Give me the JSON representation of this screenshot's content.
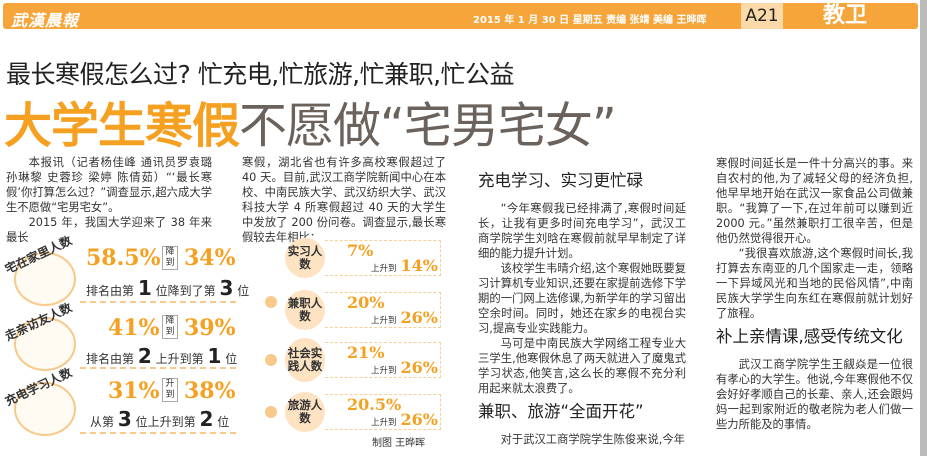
{
  "header": {
    "logo": "武漢晨報",
    "meta": "2015 年 1 月 30 日  星期五  责编 张靖   美编 王晔晖",
    "page": "A21",
    "section": "教卫",
    "accent": "#f6a53a"
  },
  "subtitle": "最长寒假怎么过? 忙充电,忙旅游,忙兼职,忙公益",
  "headline": {
    "highlight": "大学生寒假",
    "rest": "不愿做“宅男宅女”"
  },
  "col1": {
    "paragraphs": [
      "本报讯（记者杨佳峰 通讯员罗袁璐 孙琳黎 史蓉珍 梁婷 陈倩茹）“‘最长寒假’你打算怎么过？”调查显示,超六成大学生不愿做“宅男宅女”。",
      "2015 年，我国大学迎来了 38 年来最长"
    ]
  },
  "col2": {
    "paragraphs": [
      "寒假，湖北省也有许多高校寒假超过了 40 天。目前,武汉工商学院新闻中心在本校、中南民族大学、武汉纺织大学、武汉科技大学 4 所寒假超过 40 天的大学生中发放了 200 份问卷。调查显示,最长寒假较去年相比："
    ]
  },
  "left_stats": [
    {
      "label": "宅在家里人数",
      "icon": "stay-home-illustration",
      "from": "58.5%",
      "arrow": "降到",
      "to": "34%",
      "rank_pre": "排名由第",
      "rank_a": "1",
      "rank_mid": "位降到了第",
      "rank_b": "3",
      "rank_post": "位"
    },
    {
      "label": "走亲访友人数",
      "icon": "visiting-friends-illustration",
      "from": "41%",
      "arrow": "降到",
      "to": "39%",
      "rank_pre": "排名由第",
      "rank_a": "2",
      "rank_mid": "上升到第",
      "rank_b": "1",
      "rank_post": "位"
    },
    {
      "label": "充电学习人数",
      "icon": "studying-illustration",
      "from": "31%",
      "arrow": "升到",
      "to": "38%",
      "rank_pre": "从第",
      "rank_a": "3",
      "rank_mid": "位上升到第",
      "rank_b": "2",
      "rank_post": "位"
    }
  ],
  "right_stats": [
    {
      "label": "实习人数",
      "from": "7%",
      "rise": "上升到",
      "to": "14%"
    },
    {
      "label": "兼职人数",
      "from": "20%",
      "rise": "上升到",
      "to": "26%"
    },
    {
      "label": "社会实践人数",
      "from": "21%",
      "rise": "上升到",
      "to": "26%"
    },
    {
      "label": "旅游人数",
      "from": "20.5%",
      "rise": "上升到",
      "to": "26%"
    }
  ],
  "credit": "制图  王晔晖",
  "col3": {
    "h1": "充电学习、实习更忙碌",
    "p1": "“今年寒假我已经排满了,寒假时间延长，让我有更多时间充电学习”，武汉工商学院学生刘晗在寒假前就早早制定了详细的能力提升计划。",
    "p2": "该校学生韦晴介绍,这个寒假她既要复习计算机专业知识,还要在家提前选修下学期的一门网上选修课,为新学年的学习留出空余时间。同时，她还在家乡的电视台实习,提高专业实践能力。",
    "p3": "马可是中南民族大学网络工程专业大三学生,他寒假休息了两天就进入了魔鬼式学习状态,他笑言,这么长的寒假不充分利用起来就太浪费了。",
    "h2": "兼职、旅游“全面开花”",
    "p4": "对于武汉工商学院学生陈俊来说,今年"
  },
  "col4": {
    "p1": "寒假时间延长是一件十分高兴的事。来自农村的他,为了减轻父母的经济负担,他早早地开始在武汉一家食品公司做兼职。“我算了一下,在过年前可以赚到近 2000 元。”虽然兼职打工很辛苦，但是他仍然觉得很开心。",
    "p2": "“我很喜欢旅游,这个寒假时间长,我打算去东南亚的几个国家走一走，领略一下异域风光和当地的民俗风情”,中南民族大学学生向东红在寒假前就计划好了旅程。",
    "h1": "补上亲情课,感受传统文化",
    "p3": "武汉工商学院学生王觎焱是一位很有孝心的大学生。他说,今年寒假他不仅会好好孝顺自己的长辈、亲人,还会跟妈妈一起到家附近的敬老院为老人们做一些力所能及的事情。"
  }
}
